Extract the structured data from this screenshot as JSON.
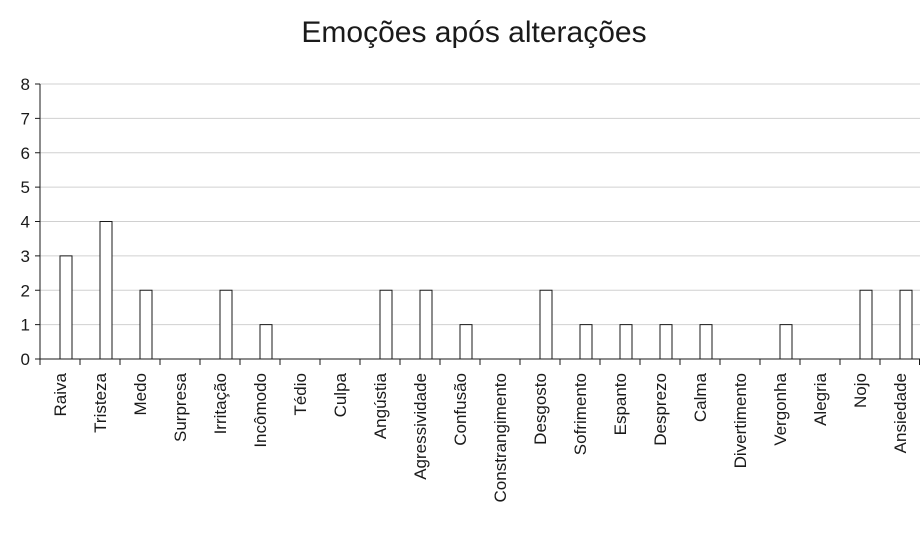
{
  "chart_data": {
    "type": "bar",
    "title": "Emoções após alterações",
    "xlabel": "",
    "ylabel": "",
    "ylim": [
      0,
      8
    ],
    "yticks": [
      0,
      1,
      2,
      3,
      4,
      5,
      6,
      7,
      8
    ],
    "grid": true,
    "legend": "none",
    "categories": [
      "Raiva",
      "Tristeza",
      "Medo",
      "Surpresa",
      "Irritação",
      "Incômodo",
      "Tédio",
      "Culpa",
      "Angústia",
      "Agressividade",
      "Confusão",
      "Constrangimento",
      "Desgosto",
      "Sofrimento",
      "Espanto",
      "Desprezo",
      "Calma",
      "Divertimento",
      "Vergonha",
      "Alegria",
      "Nojo",
      "Ansiedade"
    ],
    "values": [
      3,
      4,
      2,
      0,
      2,
      1,
      0,
      0,
      2,
      2,
      1,
      0,
      2,
      1,
      1,
      1,
      1,
      0,
      1,
      0,
      2,
      2
    ],
    "colors": {
      "bar_fill": "#ffffff",
      "bar_stroke": "#1a1a1a",
      "grid": "#d0d0d0",
      "text": "#1a1a1a"
    }
  }
}
